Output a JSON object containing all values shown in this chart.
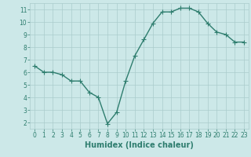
{
  "x": [
    0,
    1,
    2,
    3,
    4,
    5,
    6,
    7,
    8,
    9,
    10,
    11,
    12,
    13,
    14,
    15,
    16,
    17,
    18,
    19,
    20,
    21,
    22,
    23
  ],
  "y": [
    6.5,
    6.0,
    6.0,
    5.8,
    5.3,
    5.3,
    4.4,
    4.0,
    1.9,
    2.8,
    5.3,
    7.3,
    8.6,
    9.9,
    10.8,
    10.8,
    11.1,
    11.1,
    10.8,
    9.9,
    9.2,
    9.0,
    8.4,
    8.4
  ],
  "xlabel": "Humidex (Indice chaleur)",
  "xlim_min": -0.5,
  "xlim_max": 23.5,
  "ylim_min": 1.5,
  "ylim_max": 11.5,
  "yticks": [
    2,
    3,
    4,
    5,
    6,
    7,
    8,
    9,
    10,
    11
  ],
  "xticks": [
    0,
    1,
    2,
    3,
    4,
    5,
    6,
    7,
    8,
    9,
    10,
    11,
    12,
    13,
    14,
    15,
    16,
    17,
    18,
    19,
    20,
    21,
    22,
    23
  ],
  "line_color": "#2e7d6e",
  "marker": "+",
  "bg_color": "#cce8e8",
  "grid_color": "#aacccc",
  "spine_color": "#aacccc",
  "tick_color": "#2e7d6e",
  "label_color": "#2e7d6e",
  "xlabel_fontsize": 7,
  "tick_fontsize": 5.5,
  "linewidth": 1.0,
  "markersize": 4,
  "markeredgewidth": 0.8
}
